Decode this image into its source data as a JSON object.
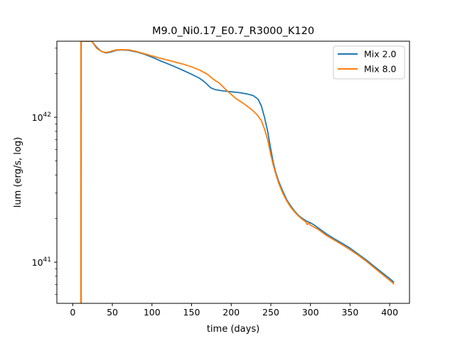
{
  "chart_data": {
    "type": "line",
    "title": "M9.0_Ni0.17_E0.7_R3000_K120",
    "xlabel": "time (days)",
    "ylabel": "lum (erg/s, log)",
    "xlim": [
      -20,
      425
    ],
    "ylim": [
      5.2e+40,
      3.35e+42
    ],
    "yscale": "log",
    "grid": false,
    "legend": "top-right",
    "x_ticks": [
      0,
      50,
      100,
      150,
      200,
      250,
      300,
      350,
      400
    ],
    "x_tick_labels": [
      "0",
      "50",
      "100",
      "150",
      "200",
      "250",
      "300",
      "350",
      "400"
    ],
    "y_ticks": [
      1e+41,
      1e+42
    ],
    "y_tick_labels": [
      {
        "base": "10",
        "exp": "41"
      },
      {
        "base": "10",
        "exp": "42"
      }
    ],
    "series": [
      {
        "name": "Mix 2.0",
        "color": "#1f77b4",
        "x": [
          10.5,
          10.5,
          10.6,
          10.6,
          12,
          18,
          24,
          30,
          36,
          42,
          48,
          55,
          62,
          70,
          80,
          90,
          100,
          110,
          120,
          130,
          140,
          150,
          160,
          166,
          170,
          174,
          180,
          190,
          200,
          210,
          220,
          228,
          234,
          238,
          242,
          246,
          250,
          253,
          256,
          260,
          265,
          270,
          275,
          280,
          285,
          290,
          295,
          300,
          305,
          310,
          320,
          330,
          340,
          350,
          360,
          370,
          380,
          390,
          400,
          405
        ],
        "y": [
          5.2e+40,
          3e+41,
          1.5e+42,
          3.35e+42,
          3.35e+42,
          3.35e+42,
          3.35e+42,
          3.05e+42,
          2.85e+42,
          2.78e+42,
          2.82e+42,
          2.9e+42,
          2.92e+42,
          2.9e+42,
          2.83e+42,
          2.73e+42,
          2.6e+42,
          2.46e+42,
          2.34e+42,
          2.22e+42,
          2.1e+42,
          1.98e+42,
          1.86e+42,
          1.76e+42,
          1.68e+42,
          1.6e+42,
          1.55e+42,
          1.52e+42,
          1.5e+42,
          1.48e+42,
          1.45e+42,
          1.41e+42,
          1.33e+42,
          1.2e+42,
          1e+42,
          8e+41,
          6e+41,
          4.9e+41,
          4.2e+41,
          3.6e+41,
          3.1e+41,
          2.7e+41,
          2.45e+41,
          2.25e+41,
          2.1e+41,
          2e+41,
          1.92e+41,
          1.87e+41,
          1.8e+41,
          1.72e+41,
          1.57e+41,
          1.45e+41,
          1.35e+41,
          1.25e+41,
          1.14e+41,
          1.04e+41,
          9.4e+40,
          8.5e+40,
          7.7e+40,
          7.3e+40
        ]
      },
      {
        "name": "Mix 8.0",
        "color": "#ff7f0e",
        "x": [
          10.2,
          10.2,
          10.3,
          10.3,
          12,
          18,
          24,
          30,
          36,
          42,
          48,
          55,
          62,
          70,
          80,
          90,
          100,
          110,
          120,
          130,
          140,
          150,
          160,
          170,
          178,
          185,
          195,
          205,
          215,
          225,
          232,
          238,
          242,
          246,
          250,
          253,
          256,
          260,
          265,
          270,
          275,
          280,
          285,
          290,
          294,
          296,
          298,
          300,
          310,
          320,
          330,
          340,
          350,
          360,
          370,
          380,
          390,
          400,
          405
        ],
        "y": [
          5.2e+40,
          3e+41,
          1.5e+42,
          3.35e+42,
          3.35e+42,
          3.35e+42,
          3.35e+42,
          3e+42,
          2.85e+42,
          2.8e+42,
          2.85e+42,
          2.92e+42,
          2.93e+42,
          2.92e+42,
          2.85e+42,
          2.75e+42,
          2.65e+42,
          2.56e+42,
          2.48e+42,
          2.4e+42,
          2.32e+42,
          2.23e+42,
          2.12e+42,
          1.98e+42,
          1.82e+42,
          1.72e+42,
          1.52e+42,
          1.36e+42,
          1.25e+42,
          1.14e+42,
          1.05e+42,
          9.5e+41,
          8.3e+41,
          7e+41,
          5.5e+41,
          4.7e+41,
          4.1e+41,
          3.5e+41,
          3e+41,
          2.65e+41,
          2.4e+41,
          2.22e+41,
          2.08e+41,
          1.97e+41,
          1.9e+41,
          1.82e+41,
          1.86e+41,
          1.8e+41,
          1.68e+41,
          1.53e+41,
          1.42e+41,
          1.32e+41,
          1.22e+41,
          1.12e+41,
          1.02e+41,
          9.2e+40,
          8.3e+40,
          7.5e+40,
          7.1e+40
        ]
      }
    ]
  }
}
